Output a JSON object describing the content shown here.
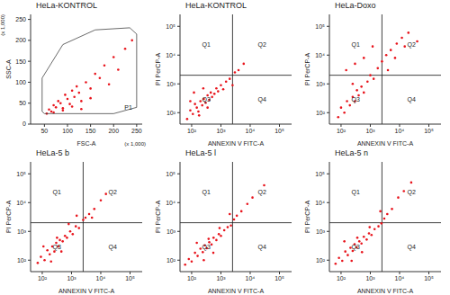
{
  "chart_data": [
    {
      "type": "scatter",
      "title": "HeLa-KONTROL",
      "x_label": "FSC-A",
      "y_label": "SSC-A",
      "x_unit": "(x 1,000)",
      "y_unit": "(x 1,000)",
      "xlim": [
        20,
        262
      ],
      "ylim": [
        0,
        262
      ],
      "xticks": [
        50,
        100,
        150,
        200,
        250
      ],
      "yticks": [
        0,
        50,
        100,
        150,
        200,
        250
      ],
      "grid": false,
      "color": "#e8141c",
      "x": [
        55,
        60,
        65,
        70,
        75,
        80,
        85,
        90,
        95,
        100,
        105,
        110,
        115,
        120,
        125,
        130,
        140,
        150,
        160,
        170,
        180,
        190,
        200,
        210,
        225,
        240,
        70,
        90,
        110,
        130,
        150
      ],
      "y": [
        25,
        35,
        30,
        45,
        40,
        55,
        50,
        38,
        70,
        60,
        48,
        80,
        65,
        90,
        75,
        55,
        100,
        85,
        120,
        110,
        140,
        95,
        160,
        130,
        180,
        200,
        28,
        33,
        42,
        36,
        62
      ],
      "gate": {
        "label": "P1",
        "x": [
          45,
          45,
          90,
          160,
          235,
          250,
          250,
          200,
          50,
          45
        ],
        "y": [
          30,
          110,
          190,
          225,
          230,
          215,
          40,
          25,
          25,
          30
        ]
      }
    },
    {
      "type": "scatter",
      "title": "HeLa-KONTROL",
      "x_label": "ANNEXIN V FITC-A",
      "y_label": "PI PerCP-A",
      "log": true,
      "xlim": [
        40,
        260000
      ],
      "ylim": [
        40,
        260000
      ],
      "xticks": [
        {
          "value": 100,
          "label": "10²"
        },
        {
          "value": 1000,
          "label": "10³"
        },
        {
          "value": 10000,
          "label": "10⁴"
        },
        {
          "value": 100000,
          "label": "10⁵"
        }
      ],
      "yticks": [
        {
          "value": 100,
          "label": "10²"
        },
        {
          "value": 1000,
          "label": "10³"
        },
        {
          "value": 10000,
          "label": "10⁴"
        },
        {
          "value": 100000,
          "label": "10⁵"
        }
      ],
      "grid": false,
      "color": "#e8141c",
      "quadrants": {
        "x": 2500,
        "y": 2000,
        "labels": [
          "Q1",
          "Q2",
          "Q3",
          "Q4"
        ]
      },
      "x": [
        70,
        90,
        110,
        130,
        150,
        170,
        200,
        230,
        260,
        300,
        350,
        400,
        450,
        500,
        600,
        700,
        800,
        1000,
        1200,
        1500,
        2000,
        2500,
        3000,
        4000,
        120,
        180,
        250,
        350,
        90,
        6000
      ],
      "y": [
        60,
        120,
        90,
        200,
        150,
        110,
        250,
        180,
        300,
        220,
        400,
        280,
        500,
        350,
        450,
        700,
        550,
        900,
        650,
        1200,
        1500,
        900,
        2500,
        3000,
        500,
        80,
        700,
        150,
        250,
        5000
      ]
    },
    {
      "type": "scatter",
      "title": "HeLa-Doxo",
      "x_label": "ANNEXIN V FITC-A",
      "y_label": "PI PerCP-A",
      "log": true,
      "xlim": [
        40,
        260000
      ],
      "ylim": [
        40,
        260000
      ],
      "xticks": [
        {
          "value": 100,
          "label": "10²"
        },
        {
          "value": 1000,
          "label": "10³"
        },
        {
          "value": 10000,
          "label": "10⁴"
        },
        {
          "value": 100000,
          "label": "10⁵"
        }
      ],
      "yticks": [
        {
          "value": 100,
          "label": "10²"
        },
        {
          "value": 1000,
          "label": "10³"
        },
        {
          "value": 10000,
          "label": "10⁴"
        },
        {
          "value": 100000,
          "label": "10⁵"
        }
      ],
      "grid": false,
      "color": "#e8141c",
      "quadrants": {
        "x": 2500,
        "y": 2000,
        "labels": [
          "Q1",
          "Q2",
          "Q3",
          "Q4"
        ]
      },
      "x": [
        80,
        100,
        130,
        160,
        200,
        250,
        300,
        350,
        400,
        500,
        600,
        800,
        1000,
        1300,
        1800,
        2500,
        3500,
        5000,
        8000,
        12000,
        20000,
        150,
        300,
        600,
        1200,
        4000,
        7000,
        15000,
        250,
        40000
      ],
      "y": [
        70,
        150,
        100,
        250,
        180,
        350,
        250,
        600,
        400,
        800,
        500,
        1200,
        2000,
        1500,
        3500,
        6000,
        10000,
        15000,
        25000,
        40000,
        60000,
        3000,
        5000,
        8000,
        20000,
        3000,
        8000,
        20000,
        1000,
        30000
      ]
    },
    {
      "type": "scatter",
      "title": "HeLa-5 b",
      "x_label": "ANNEXIN V FITC-A",
      "y_label": "PI PerCP-A",
      "log": true,
      "xlim": [
        40,
        260000
      ],
      "ylim": [
        40,
        260000
      ],
      "xticks": [
        {
          "value": 100,
          "label": "10²"
        },
        {
          "value": 1000,
          "label": "10³"
        },
        {
          "value": 10000,
          "label": "10⁴"
        },
        {
          "value": 100000,
          "label": "10⁵"
        }
      ],
      "yticks": [
        {
          "value": 100,
          "label": "10²"
        },
        {
          "value": 1000,
          "label": "10³"
        },
        {
          "value": 10000,
          "label": "10⁴"
        },
        {
          "value": 100000,
          "label": "10⁵"
        }
      ],
      "grid": false,
      "color": "#e8141c",
      "quadrants": {
        "x": 2500,
        "y": 2000,
        "labels": [
          "Q1",
          "Q2",
          "Q3",
          "Q4"
        ]
      },
      "x": [
        70,
        90,
        120,
        150,
        180,
        220,
        260,
        300,
        350,
        400,
        500,
        600,
        700,
        900,
        1100,
        1400,
        1800,
        2500,
        3000,
        4000,
        6000,
        10000,
        110,
        200,
        320,
        450,
        800,
        1500,
        5000,
        15000
      ],
      "y": [
        80,
        130,
        100,
        220,
        160,
        300,
        200,
        400,
        300,
        500,
        450,
        700,
        600,
        1000,
        800,
        1500,
        1300,
        2500,
        3000,
        4000,
        6000,
        12000,
        300,
        90,
        600,
        200,
        1800,
        3500,
        3000,
        20000
      ]
    },
    {
      "type": "scatter",
      "title": "HeLa-5 l",
      "x_label": "ANNEXIN V FITC-A",
      "y_label": "PI PerCP-A",
      "log": true,
      "xlim": [
        40,
        260000
      ],
      "ylim": [
        40,
        260000
      ],
      "xticks": [
        {
          "value": 100,
          "label": "10²"
        },
        {
          "value": 1000,
          "label": "10³"
        },
        {
          "value": 10000,
          "label": "10⁴"
        },
        {
          "value": 100000,
          "label": "10⁵"
        }
      ],
      "yticks": [
        {
          "value": 100,
          "label": "10²"
        },
        {
          "value": 1000,
          "label": "10³"
        },
        {
          "value": 10000,
          "label": "10⁴"
        },
        {
          "value": 100000,
          "label": "10⁵"
        }
      ],
      "grid": false,
      "color": "#e8141c",
      "quadrants": {
        "x": 2500,
        "y": 2000,
        "labels": [
          "Q1",
          "Q2",
          "Q3",
          "Q4"
        ]
      },
      "x": [
        60,
        80,
        100,
        130,
        160,
        200,
        240,
        280,
        330,
        400,
        480,
        560,
        700,
        850,
        1000,
        1300,
        1700,
        2200,
        2800,
        3500,
        5000,
        8000,
        150,
        260,
        380,
        550,
        900,
        2000,
        12000,
        30000
      ],
      "y": [
        70,
        110,
        90,
        180,
        140,
        250,
        190,
        330,
        260,
        420,
        350,
        600,
        500,
        800,
        700,
        1100,
        1400,
        1600,
        2600,
        3500,
        5000,
        9000,
        400,
        100,
        550,
        180,
        1300,
        4000,
        15000,
        40000
      ]
    },
    {
      "type": "scatter",
      "title": "HeLa-5 n",
      "x_label": "ANNEXIN V FITC-A",
      "y_label": "PI PerCP-A",
      "log": true,
      "xlim": [
        40,
        260000
      ],
      "ylim": [
        40,
        260000
      ],
      "xticks": [
        {
          "value": 100,
          "label": "10²"
        },
        {
          "value": 1000,
          "label": "10³"
        },
        {
          "value": 10000,
          "label": "10⁴"
        },
        {
          "value": 100000,
          "label": "10⁵"
        }
      ],
      "yticks": [
        {
          "value": 100,
          "label": "10²"
        },
        {
          "value": 1000,
          "label": "10³"
        },
        {
          "value": 10000,
          "label": "10⁴"
        },
        {
          "value": 100000,
          "label": "10⁵"
        }
      ],
      "grid": false,
      "color": "#e8141c",
      "quadrants": {
        "x": 2500,
        "y": 2000,
        "labels": [
          "Q1",
          "Q2",
          "Q3",
          "Q4"
        ]
      },
      "x": [
        65,
        85,
        110,
        140,
        170,
        210,
        250,
        290,
        340,
        420,
        500,
        600,
        750,
        900,
        1100,
        1400,
        1900,
        2400,
        3000,
        3800,
        5500,
        9000,
        130,
        230,
        360,
        520,
        950,
        2200,
        14000,
        25000
      ],
      "y": [
        75,
        120,
        95,
        200,
        150,
        270,
        210,
        360,
        280,
        450,
        380,
        650,
        520,
        850,
        750,
        1200,
        1500,
        1900,
        2800,
        4000,
        6000,
        15000,
        450,
        95,
        600,
        190,
        1400,
        5000,
        25000,
        50000
      ]
    }
  ]
}
